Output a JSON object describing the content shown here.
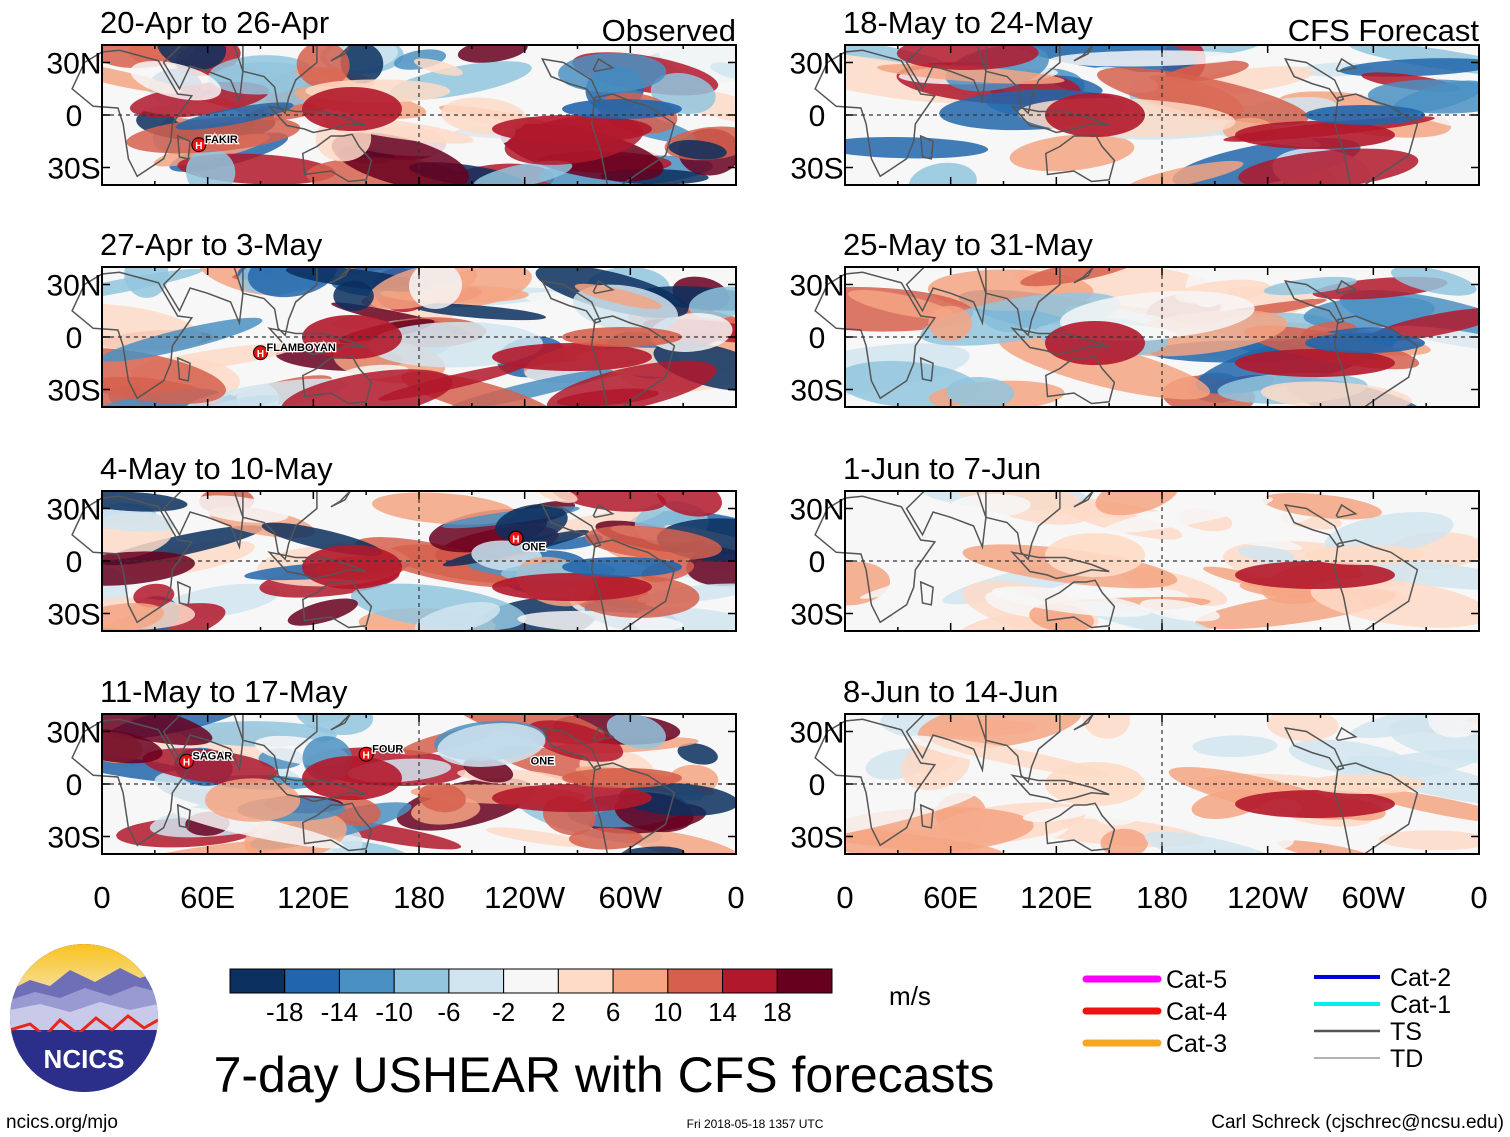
{
  "figure": {
    "title": "7-day USHEAR with CFS forecasts",
    "units": "m/s",
    "logo_text": "NCICS",
    "site": "ncics.org/mjo",
    "timestamp": "Fri 2018-05-18 1357 UTC",
    "credit": "Carl Schreck (cjschrec@ncsu.edu)"
  },
  "columns": {
    "left_label": "Observed",
    "right_label": "CFS Forecast"
  },
  "axes": {
    "lat_ticks": [
      "30N",
      "0",
      "30S"
    ],
    "lon_ticks": [
      "0",
      "60E",
      "120E",
      "180",
      "120W",
      "60W",
      "0"
    ]
  },
  "colorbar": {
    "colors": [
      "#0b2f5e",
      "#2166ac",
      "#4a90c2",
      "#92c5de",
      "#d1e5f0",
      "#f7f7f7",
      "#fddbc7",
      "#f4a582",
      "#d6604d",
      "#b2182b",
      "#67001f"
    ],
    "ticks": [
      "-18",
      "-14",
      "-10",
      "-6",
      "-2",
      "2",
      "6",
      "10",
      "14",
      "18"
    ]
  },
  "legend": {
    "left": [
      {
        "label": "Cat-5",
        "color": "#ff00ff"
      },
      {
        "label": "Cat-4",
        "color": "#ee1111"
      },
      {
        "label": "Cat-3",
        "color": "#f5a623"
      }
    ],
    "right": [
      {
        "label": "Cat-2",
        "color": "#0000dd"
      },
      {
        "label": "Cat-1",
        "color": "#00f0f0"
      },
      {
        "label": "TS",
        "color": "#555555"
      },
      {
        "label": "TD",
        "color": "#999999"
      }
    ]
  },
  "chart_data": {
    "type": "heatmap",
    "variable": "USHEAR",
    "units": "m/s",
    "levels": [
      -18,
      -14,
      -10,
      -6,
      -2,
      2,
      6,
      10,
      14,
      18
    ],
    "lon_range": [
      0,
      360
    ],
    "lat_range": [
      -40,
      40
    ],
    "panels": [
      {
        "title": "20-Apr to 26-Apr",
        "source": "Observed",
        "storms": [
          {
            "name": "FAKIR",
            "lon": 55,
            "lat": -17
          }
        ]
      },
      {
        "title": "27-Apr to 3-May",
        "source": "Observed",
        "storms": [
          {
            "name": "FLAMBOYAN",
            "lon": 90,
            "lat": -9
          }
        ]
      },
      {
        "title": "4-May to 10-May",
        "source": "Observed",
        "storms": [
          {
            "name": "ONE",
            "lon": 235,
            "lat": 13
          }
        ]
      },
      {
        "title": "11-May to 17-May",
        "source": "Observed",
        "storms": [
          {
            "name": "SAGAR",
            "lon": 48,
            "lat": 13
          },
          {
            "name": "FOUR",
            "lon": 150,
            "lat": 17
          },
          {
            "name": "ONE",
            "lon": 240,
            "lat": 10
          }
        ]
      },
      {
        "title": "18-May to 24-May",
        "source": "CFS Forecast",
        "storms": []
      },
      {
        "title": "25-May to 31-May",
        "source": "CFS Forecast",
        "storms": []
      },
      {
        "title": "1-Jun to 7-Jun",
        "source": "CFS Forecast",
        "storms": []
      },
      {
        "title": "8-Jun to 14-Jun",
        "source": "CFS Forecast",
        "storms": []
      }
    ]
  }
}
